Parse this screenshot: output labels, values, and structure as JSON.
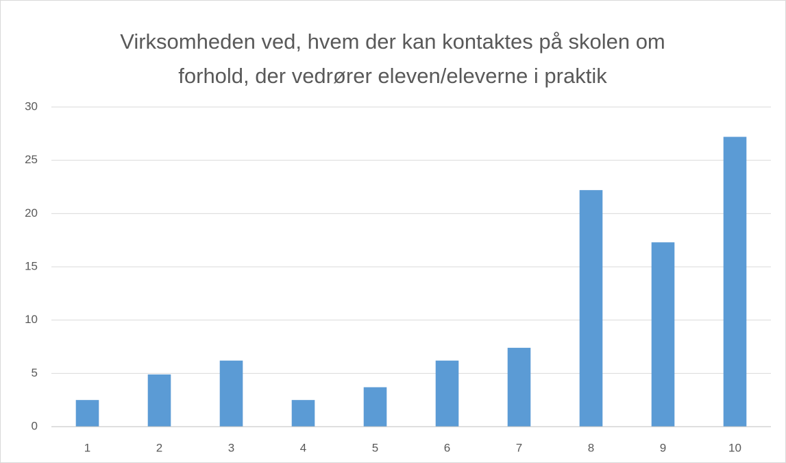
{
  "chart_data": {
    "type": "bar",
    "title": "Virksomheden ved, hvem der kan kontaktes på skolen om forhold, der vedrører eleven/eleverne i praktik",
    "categories": [
      "1",
      "2",
      "3",
      "4",
      "5",
      "6",
      "7",
      "8",
      "9",
      "10"
    ],
    "values": [
      2.5,
      4.9,
      6.2,
      2.5,
      3.7,
      6.2,
      7.4,
      22.2,
      17.3,
      27.2
    ],
    "color": "#5b9bd5",
    "ylim": [
      0,
      30
    ],
    "yticks": [
      0,
      5,
      10,
      15,
      20,
      25,
      30
    ],
    "grid": true
  }
}
